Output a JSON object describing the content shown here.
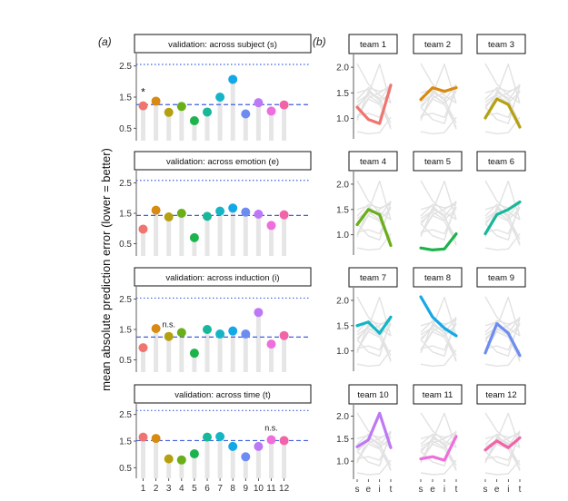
{
  "panel_labels": {
    "a": "(a)",
    "b": "(b)"
  },
  "ylabel": "mean absolute prediction error (lower = better)",
  "xlabel_a": "",
  "xlabel_b": "",
  "team_colors": [
    "#F07470",
    "#D98A10",
    "#B5A010",
    "#6AAE1A",
    "#1DB34C",
    "#17B89A",
    "#15B5C6",
    "#15A8E6",
    "#6C8CF2",
    "#BD79F5",
    "#EE6EDC",
    "#F264A8"
  ],
  "chart_data": [
    {
      "type": "lollipop",
      "title": "validation: across subject (s)",
      "x": [
        1,
        2,
        3,
        4,
        5,
        6,
        7,
        8,
        9,
        10,
        11,
        12
      ],
      "values": [
        1.22,
        1.37,
        1.01,
        1.2,
        0.74,
        1.02,
        1.5,
        2.07,
        0.96,
        1.32,
        1.05,
        1.25
      ],
      "baseline": 1.26,
      "reference": 2.55,
      "yticks": [
        "0.5",
        "1.5",
        "2.5"
      ],
      "ylim": [
        0.1,
        2.9
      ],
      "annotations": [
        {
          "team": 1,
          "text": "*"
        }
      ]
    },
    {
      "type": "lollipop",
      "title": "validation: across emotion (e)",
      "x": [
        1,
        2,
        3,
        4,
        5,
        6,
        7,
        8,
        9,
        10,
        11,
        12
      ],
      "values": [
        0.98,
        1.6,
        1.38,
        1.5,
        0.7,
        1.4,
        1.57,
        1.67,
        1.54,
        1.47,
        1.1,
        1.45
      ],
      "baseline": 1.43,
      "reference": 2.58,
      "yticks": [
        "0.5",
        "1.5",
        "2.5"
      ],
      "ylim": [
        0.1,
        2.9
      ],
      "annotations": []
    },
    {
      "type": "lollipop",
      "title": "validation: across induction (i)",
      "x": [
        1,
        2,
        3,
        4,
        5,
        6,
        7,
        8,
        9,
        10,
        11,
        12
      ],
      "values": [
        0.9,
        1.53,
        1.27,
        1.4,
        0.72,
        1.5,
        1.35,
        1.45,
        1.35,
        2.06,
        1.02,
        1.3
      ],
      "baseline": 1.25,
      "reference": 2.53,
      "yticks": [
        "0.5",
        "1.5",
        "2.5"
      ],
      "ylim": [
        0.1,
        2.9
      ],
      "annotations": [
        {
          "team": 3,
          "text": "n.s."
        }
      ]
    },
    {
      "type": "lollipop",
      "title": "validation: across time (t)",
      "x": [
        1,
        2,
        3,
        4,
        5,
        6,
        7,
        8,
        9,
        10,
        11,
        12
      ],
      "values": [
        1.65,
        1.6,
        0.83,
        0.79,
        1.02,
        1.65,
        1.67,
        1.3,
        0.91,
        1.3,
        1.55,
        1.52
      ],
      "baseline": 1.52,
      "reference": 2.65,
      "yticks": [
        "0.5",
        "1.5",
        "2.5"
      ],
      "ylim": [
        0.1,
        2.9
      ],
      "annotations": [
        {
          "team": 11,
          "text": "n.s."
        }
      ]
    },
    {
      "type": "line",
      "x_categories": [
        "s",
        "e",
        "i",
        "t"
      ],
      "yticks": [
        "1.0",
        "1.5",
        "2.0"
      ],
      "ylim": [
        0.6,
        2.25
      ],
      "teams": [
        {
          "title": "team 1",
          "values": [
            1.22,
            0.98,
            0.9,
            1.65
          ]
        },
        {
          "title": "team 2",
          "values": [
            1.37,
            1.6,
            1.53,
            1.6
          ]
        },
        {
          "title": "team 3",
          "values": [
            1.01,
            1.38,
            1.27,
            0.83
          ]
        },
        {
          "title": "team 4",
          "values": [
            1.2,
            1.5,
            1.4,
            0.79
          ]
        },
        {
          "title": "team 5",
          "values": [
            0.74,
            0.7,
            0.72,
            1.02
          ]
        },
        {
          "title": "team 6",
          "values": [
            1.02,
            1.4,
            1.5,
            1.65
          ]
        },
        {
          "title": "team 7",
          "values": [
            1.5,
            1.57,
            1.35,
            1.67
          ]
        },
        {
          "title": "team 8",
          "values": [
            2.07,
            1.67,
            1.45,
            1.3
          ]
        },
        {
          "title": "team 9",
          "values": [
            0.96,
            1.54,
            1.35,
            0.91
          ]
        },
        {
          "title": "team 10",
          "values": [
            1.32,
            1.47,
            2.06,
            1.3
          ]
        },
        {
          "title": "team 11",
          "values": [
            1.05,
            1.1,
            1.02,
            1.55
          ]
        },
        {
          "title": "team 12",
          "values": [
            1.25,
            1.45,
            1.3,
            1.52
          ]
        }
      ]
    }
  ]
}
